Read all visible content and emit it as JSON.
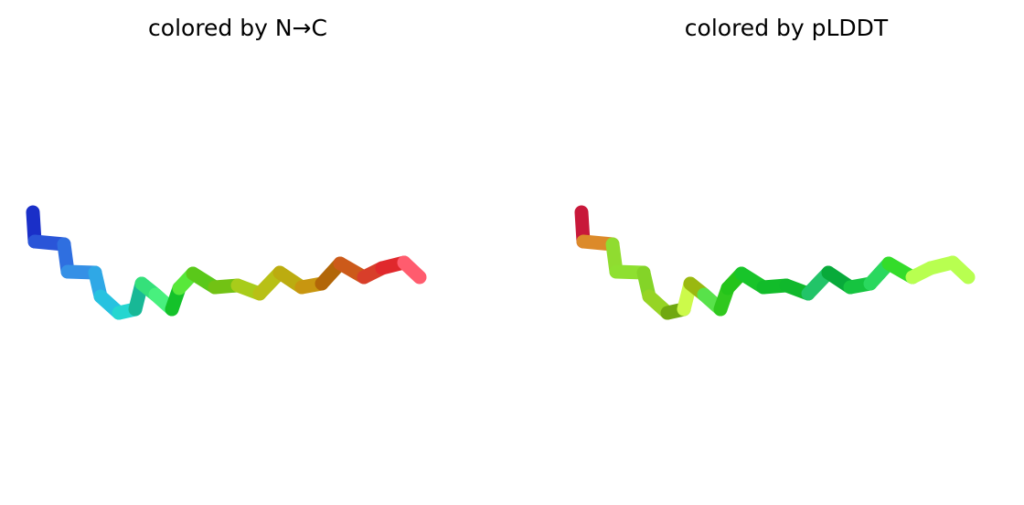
{
  "panels": [
    {
      "title": "colored by N→C",
      "coloring": "residue index (N to C)",
      "segment_colors": [
        "#1a2fc8",
        "#2a55d8",
        "#2f6fe0",
        "#3590e6",
        "#2fa8e6",
        "#27c2e0",
        "#25d6d0",
        "#18b896",
        "#35e07a",
        "#48f07e",
        "#14c22a",
        "#58e83a",
        "#5ac81a",
        "#72c214",
        "#a8cc1a",
        "#b8c016",
        "#bcac10",
        "#c89610",
        "#b26608",
        "#cc5a1a",
        "#d83e2a",
        "#e0282c",
        "#ff5c6e"
      ]
    },
    {
      "title": "colored by pLDDT",
      "coloring": "pLDDT confidence",
      "segment_colors": [
        "#c8183a",
        "#dc8a2a",
        "#90dc30",
        "#8ee030",
        "#84d428",
        "#96d424",
        "#70a810",
        "#ccfa4a",
        "#9ab810",
        "#58e24a",
        "#30c81e",
        "#24c41a",
        "#18c42a",
        "#12bc2a",
        "#10b82c",
        "#22c468",
        "#08aa3a",
        "#16c440",
        "#2ad85e",
        "#34dc2a",
        "#b8ff50",
        "#b8ff50",
        "#b8ff50"
      ]
    }
  ]
}
